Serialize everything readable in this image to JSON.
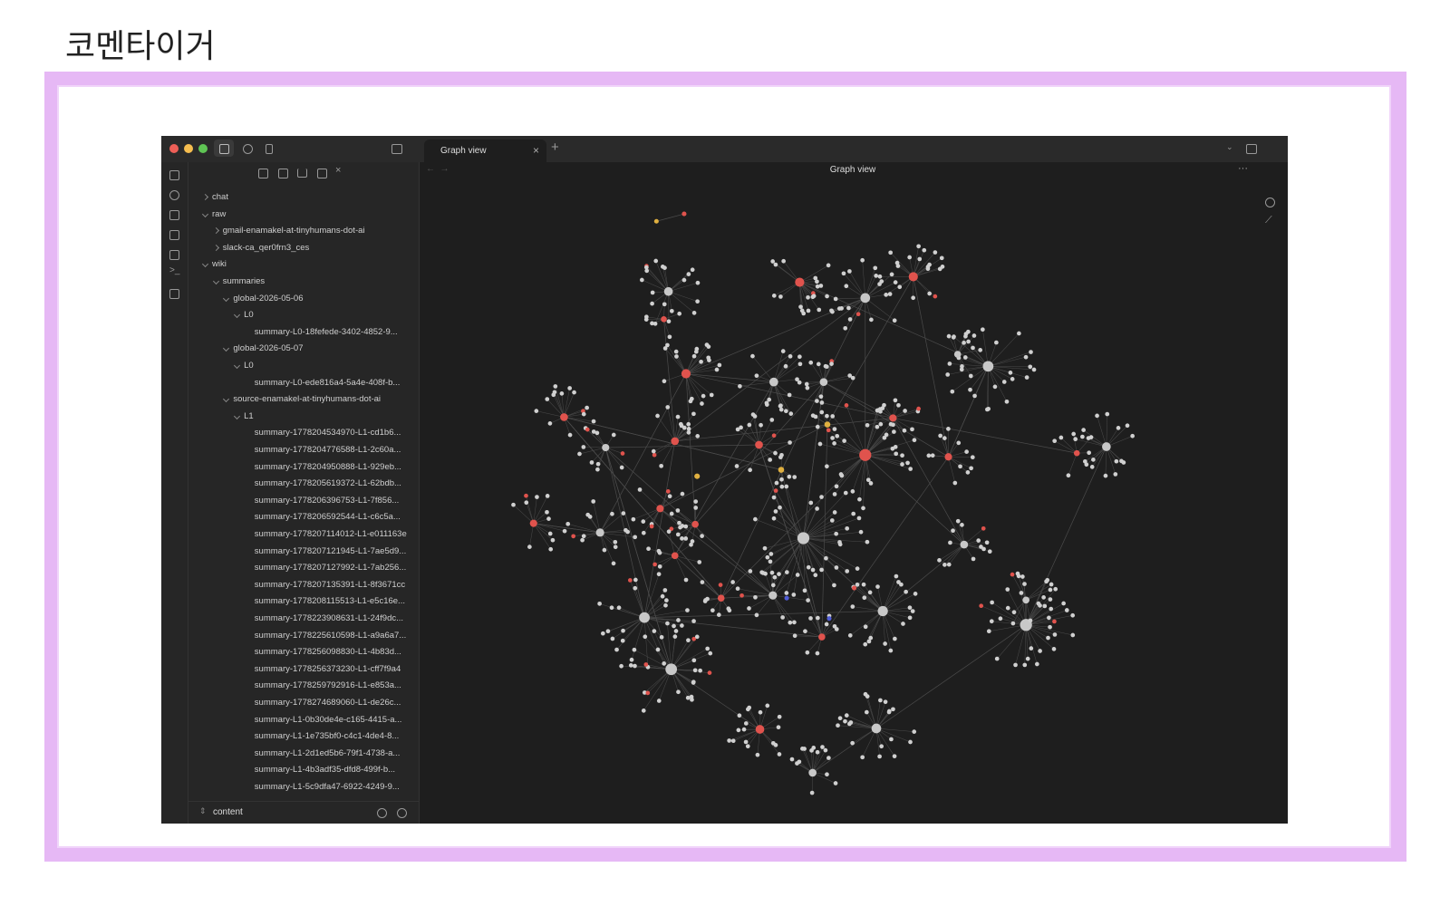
{
  "title": "코멘타이거",
  "tab": {
    "label": "Graph view"
  },
  "header": {
    "title": "Graph view"
  },
  "file_tree": [
    {
      "label": "chat",
      "kind": "folder-closed"
    },
    {
      "label": "raw",
      "kind": "folder-open",
      "children": [
        {
          "label": "gmail-enamakel-at-tinyhumans-dot-ai",
          "kind": "folder-closed"
        },
        {
          "label": "slack-ca_qer0frn3_ces",
          "kind": "folder-closed"
        }
      ]
    },
    {
      "label": "wiki",
      "kind": "folder-open",
      "children": [
        {
          "label": "summaries",
          "kind": "folder-open",
          "children": [
            {
              "label": "global-2026-05-06",
              "kind": "folder-open",
              "children": [
                {
                  "label": "L0",
                  "kind": "folder-open",
                  "children": [
                    {
                      "label": "summary-L0-18fefede-3402-4852-9...",
                      "kind": "file"
                    }
                  ]
                }
              ]
            },
            {
              "label": "global-2026-05-07",
              "kind": "folder-open",
              "children": [
                {
                  "label": "L0",
                  "kind": "folder-open",
                  "children": [
                    {
                      "label": "summary-L0-ede816a4-5a4e-408f-b...",
                      "kind": "file"
                    }
                  ]
                }
              ]
            },
            {
              "label": "source-enamakel-at-tinyhumans-dot-ai",
              "kind": "folder-open",
              "children": [
                {
                  "label": "L1",
                  "kind": "folder-open",
                  "children": [
                    {
                      "label": "summary-1778204534970-L1-cd1b6...",
                      "kind": "file"
                    },
                    {
                      "label": "summary-1778204776588-L1-2c60a...",
                      "kind": "file"
                    },
                    {
                      "label": "summary-1778204950888-L1-929eb...",
                      "kind": "file"
                    },
                    {
                      "label": "summary-1778205619372-L1-62bdb...",
                      "kind": "file"
                    },
                    {
                      "label": "summary-1778206396753-L1-7f856...",
                      "kind": "file"
                    },
                    {
                      "label": "summary-1778206592544-L1-c6c5a...",
                      "kind": "file"
                    },
                    {
                      "label": "summary-1778207114012-L1-e011163e",
                      "kind": "file"
                    },
                    {
                      "label": "summary-1778207121945-L1-7ae5d9...",
                      "kind": "file"
                    },
                    {
                      "label": "summary-1778207127992-L1-7ab256...",
                      "kind": "file"
                    },
                    {
                      "label": "summary-1778207135391-L1-8f3671cc",
                      "kind": "file"
                    },
                    {
                      "label": "summary-1778208115513-L1-e5c16e...",
                      "kind": "file"
                    },
                    {
                      "label": "summary-1778223908631-L1-24f9dc...",
                      "kind": "file"
                    },
                    {
                      "label": "summary-1778225610598-L1-a9a6a7...",
                      "kind": "file"
                    },
                    {
                      "label": "summary-1778256098830-L1-4b83d...",
                      "kind": "file"
                    },
                    {
                      "label": "summary-1778256373230-L1-cff7f9a4",
                      "kind": "file"
                    },
                    {
                      "label": "summary-1778259792916-L1-e853a...",
                      "kind": "file"
                    },
                    {
                      "label": "summary-1778274689060-L1-de26c...",
                      "kind": "file"
                    },
                    {
                      "label": "summary-L1-0b30de4e-c165-4415-a...",
                      "kind": "file"
                    },
                    {
                      "label": "summary-L1-1e735bf0-c4c1-4de4-8...",
                      "kind": "file"
                    },
                    {
                      "label": "summary-L1-2d1ed5b6-79f1-4738-a...",
                      "kind": "file"
                    },
                    {
                      "label": "summary-L1-4b3adf35-dfd8-499f-b...",
                      "kind": "file"
                    },
                    {
                      "label": "summary-L1-5c9dfa47-6922-4249-9...",
                      "kind": "file"
                    }
                  ]
                }
              ]
            }
          ]
        }
      ]
    }
  ],
  "vault": {
    "name": "content"
  }
}
